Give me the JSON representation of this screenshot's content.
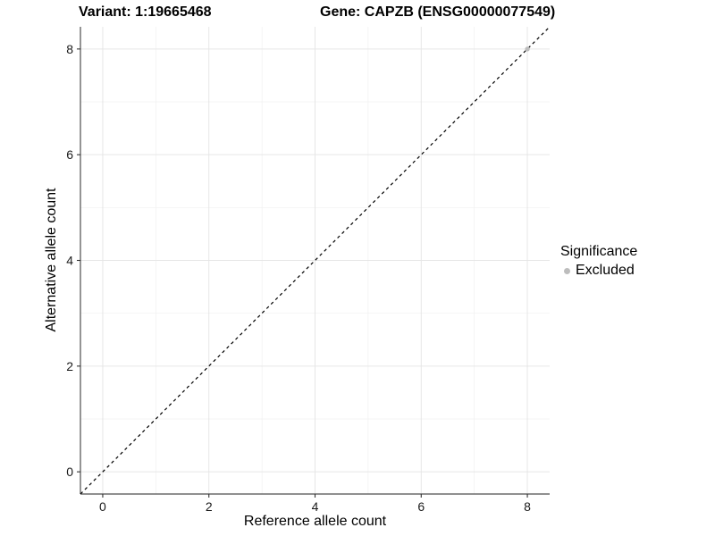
{
  "chart_data": {
    "type": "scatter",
    "title_left": "Variant: 1:19665468",
    "title_right": "Gene: CAPZB (ENSG00000077549)",
    "xlabel": "Reference allele count",
    "ylabel": "Alternative allele count",
    "x_ticks": [
      0,
      2,
      4,
      6,
      8
    ],
    "y_ticks": [
      0,
      2,
      4,
      6,
      8
    ],
    "x_minor_ticks": [
      1,
      3,
      5,
      7
    ],
    "y_minor_ticks": [
      1,
      3,
      5,
      7
    ],
    "xlim": [
      -0.42,
      8.42
    ],
    "ylim": [
      -0.42,
      8.42
    ],
    "grid": "major and minor light grey gridlines on white panel",
    "legend_position": "right, vertically centered",
    "series": [
      {
        "name": "Excluded",
        "color": "#bdbdbd",
        "points": [
          {
            "x": 8,
            "y": 8
          }
        ]
      }
    ],
    "reference_line": {
      "description": "identity line y = x",
      "style": "dashed",
      "color": "#000000",
      "x1": -0.42,
      "y1": -0.42,
      "x2": 8.42,
      "y2": 8.42
    },
    "legend": {
      "title": "Significance",
      "entries": [
        {
          "label": "Excluded",
          "color": "#bdbdbd"
        }
      ]
    }
  },
  "style": {
    "background": "#ffffff",
    "grid_major_color": "#e6e6e6",
    "grid_minor_color": "#f0f0f0",
    "axis_line_color": "#4d4d4d",
    "tick_color": "#333333",
    "tick_label_color": "#1a1a1a",
    "title_color": "#000000",
    "point_radius": 2.7
  }
}
